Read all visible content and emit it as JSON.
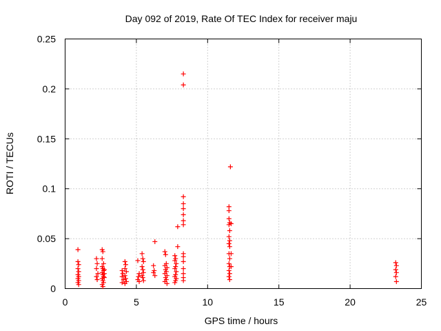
{
  "chart_data": {
    "type": "scatter",
    "title": "Day 092 of 2019, Rate Of TEC Index for receiver maju",
    "xlabel": "GPS time / hours",
    "ylabel": "ROTI / TECUs",
    "xlim": [
      0,
      25
    ],
    "ylim": [
      0,
      0.25
    ],
    "grid": true,
    "marker": "+",
    "color": "#ff0000",
    "xticks": [
      0,
      5,
      10,
      15,
      20,
      25
    ],
    "xtick_labels": [
      "0",
      "5",
      "10",
      "15",
      "20",
      "25"
    ],
    "yticks": [
      0,
      0.05,
      0.1,
      0.15,
      0.2,
      0.25
    ],
    "ytick_labels": [
      "0",
      "0.05",
      "0.1",
      "0.15",
      "0.2",
      "0.25"
    ],
    "series": [
      {
        "name": "ROTI",
        "points": [
          [
            0.9,
            0.039
          ],
          [
            0.9,
            0.027
          ],
          [
            0.95,
            0.024
          ],
          [
            0.9,
            0.02
          ],
          [
            0.95,
            0.017
          ],
          [
            0.9,
            0.014
          ],
          [
            0.95,
            0.012
          ],
          [
            0.9,
            0.01
          ],
          [
            0.95,
            0.008
          ],
          [
            0.9,
            0.006
          ],
          [
            0.95,
            0.004
          ],
          [
            2.2,
            0.03
          ],
          [
            2.25,
            0.025
          ],
          [
            2.2,
            0.02
          ],
          [
            2.3,
            0.015
          ],
          [
            2.2,
            0.012
          ],
          [
            2.25,
            0.009
          ],
          [
            2.6,
            0.039
          ],
          [
            2.65,
            0.037
          ],
          [
            2.6,
            0.03
          ],
          [
            2.7,
            0.025
          ],
          [
            2.6,
            0.022
          ],
          [
            2.65,
            0.02
          ],
          [
            2.7,
            0.018
          ],
          [
            2.6,
            0.016
          ],
          [
            2.65,
            0.014
          ],
          [
            2.7,
            0.012
          ],
          [
            2.6,
            0.01
          ],
          [
            2.65,
            0.008
          ],
          [
            2.7,
            0.006
          ],
          [
            2.6,
            0.004
          ],
          [
            2.65,
            0.002
          ],
          [
            2.75,
            0.019
          ],
          [
            2.75,
            0.015
          ],
          [
            2.75,
            0.011
          ],
          [
            4.0,
            0.018
          ],
          [
            4.05,
            0.015
          ],
          [
            4.0,
            0.012
          ],
          [
            4.1,
            0.009
          ],
          [
            4.0,
            0.006
          ],
          [
            4.2,
            0.027
          ],
          [
            4.25,
            0.024
          ],
          [
            4.2,
            0.02
          ],
          [
            4.3,
            0.017
          ],
          [
            4.2,
            0.013
          ],
          [
            4.25,
            0.01
          ],
          [
            4.3,
            0.007
          ],
          [
            4.2,
            0.005
          ],
          [
            5.1,
            0.028
          ],
          [
            5.2,
            0.015
          ],
          [
            5.15,
            0.012
          ],
          [
            5.1,
            0.009
          ],
          [
            5.2,
            0.007
          ],
          [
            5.4,
            0.035
          ],
          [
            5.45,
            0.03
          ],
          [
            5.5,
            0.027
          ],
          [
            5.4,
            0.022
          ],
          [
            5.45,
            0.019
          ],
          [
            5.5,
            0.016
          ],
          [
            5.4,
            0.013
          ],
          [
            5.45,
            0.011
          ],
          [
            5.5,
            0.008
          ],
          [
            6.3,
            0.047
          ],
          [
            6.2,
            0.023
          ],
          [
            6.25,
            0.018
          ],
          [
            6.2,
            0.016
          ],
          [
            6.3,
            0.013
          ],
          [
            7.0,
            0.037
          ],
          [
            7.05,
            0.034
          ],
          [
            7.1,
            0.025
          ],
          [
            7.0,
            0.023
          ],
          [
            7.15,
            0.021
          ],
          [
            7.05,
            0.019
          ],
          [
            7.1,
            0.017
          ],
          [
            7.0,
            0.015
          ],
          [
            7.15,
            0.013
          ],
          [
            7.05,
            0.011
          ],
          [
            7.1,
            0.009
          ],
          [
            7.0,
            0.007
          ],
          [
            7.15,
            0.005
          ],
          [
            7.7,
            0.033
          ],
          [
            7.75,
            0.03
          ],
          [
            7.7,
            0.028
          ],
          [
            7.8,
            0.025
          ],
          [
            7.75,
            0.022
          ],
          [
            7.7,
            0.02
          ],
          [
            7.8,
            0.017
          ],
          [
            7.75,
            0.014
          ],
          [
            7.7,
            0.012
          ],
          [
            7.8,
            0.01
          ],
          [
            7.75,
            0.008
          ],
          [
            7.7,
            0.006
          ],
          [
            7.9,
            0.062
          ],
          [
            7.9,
            0.042
          ],
          [
            8.3,
            0.215
          ],
          [
            8.3,
            0.204
          ],
          [
            8.3,
            0.092
          ],
          [
            8.3,
            0.085
          ],
          [
            8.3,
            0.08
          ],
          [
            8.3,
            0.074
          ],
          [
            8.3,
            0.068
          ],
          [
            8.3,
            0.064
          ],
          [
            8.3,
            0.035
          ],
          [
            8.3,
            0.032
          ],
          [
            8.3,
            0.027
          ],
          [
            8.3,
            0.02
          ],
          [
            8.3,
            0.015
          ],
          [
            8.3,
            0.011
          ],
          [
            8.3,
            0.008
          ],
          [
            11.5,
            0.082
          ],
          [
            11.5,
            0.078
          ],
          [
            11.5,
            0.07
          ],
          [
            11.55,
            0.066
          ],
          [
            11.5,
            0.064
          ],
          [
            11.55,
            0.058
          ],
          [
            11.5,
            0.052
          ],
          [
            11.55,
            0.048
          ],
          [
            11.5,
            0.045
          ],
          [
            11.55,
            0.042
          ],
          [
            11.5,
            0.035
          ],
          [
            11.55,
            0.03
          ],
          [
            11.5,
            0.025
          ],
          [
            11.55,
            0.022
          ],
          [
            11.5,
            0.018
          ],
          [
            11.55,
            0.015
          ],
          [
            11.5,
            0.012
          ],
          [
            11.55,
            0.009
          ],
          [
            11.6,
            0.122
          ],
          [
            11.65,
            0.065
          ],
          [
            11.65,
            0.035
          ],
          [
            11.65,
            0.022
          ],
          [
            23.2,
            0.026
          ],
          [
            23.25,
            0.023
          ],
          [
            23.2,
            0.019
          ],
          [
            23.25,
            0.016
          ],
          [
            23.2,
            0.012
          ],
          [
            23.25,
            0.007
          ]
        ]
      }
    ]
  }
}
